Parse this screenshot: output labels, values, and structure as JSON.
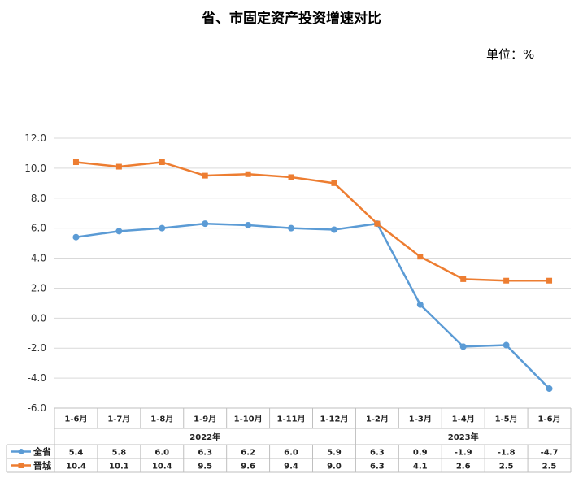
{
  "header": {
    "title": "省、市固定资产投资增速对比",
    "unit": "单位：%"
  },
  "chart_data": {
    "type": "line",
    "title": "省、市固定资产投资增速对比",
    "categories": [
      "1-6月",
      "1-7月",
      "1-8月",
      "1-9月",
      "1-10月",
      "1-11月",
      "1-12月",
      "1-2月",
      "1-3月",
      "1-4月",
      "1-5月",
      "1-6月"
    ],
    "groups": [
      {
        "label": "2022年",
        "start": 0,
        "end": 6
      },
      {
        "label": "2023年",
        "start": 7,
        "end": 11
      }
    ],
    "ylim": [
      -6,
      12
    ],
    "yticks": [
      "12.0",
      "10.0",
      "8.0",
      "6.0",
      "4.0",
      "2.0",
      "0.0",
      "-2.0",
      "-4.0",
      "-6.0"
    ],
    "ytick_values": [
      12,
      10,
      8,
      6,
      4,
      2,
      0,
      -2,
      -4,
      -6
    ],
    "grid": true,
    "legend": "table-left",
    "series": [
      {
        "name": "全省",
        "color": "#5B9BD5",
        "marker": "circle",
        "values": [
          5.4,
          5.8,
          6.0,
          6.3,
          6.2,
          6.0,
          5.9,
          6.3,
          0.9,
          -1.9,
          -1.8,
          -4.7
        ],
        "labels": [
          "5.4",
          "5.8",
          "6.0",
          "6.3",
          "6.2",
          "6.0",
          "5.9",
          "6.3",
          "0.9",
          "-1.9",
          "-1.8",
          "-4.7"
        ]
      },
      {
        "name": "晋城",
        "color": "#ED7D31",
        "marker": "square",
        "values": [
          10.4,
          10.1,
          10.4,
          9.5,
          9.6,
          9.4,
          9.0,
          6.3,
          4.1,
          2.6,
          2.5,
          2.5
        ],
        "labels": [
          "10.4",
          "10.1",
          "10.4",
          "9.5",
          "9.6",
          "9.4",
          "9.0",
          "6.3",
          "4.1",
          "2.6",
          "2.5",
          "2.5"
        ]
      }
    ]
  }
}
